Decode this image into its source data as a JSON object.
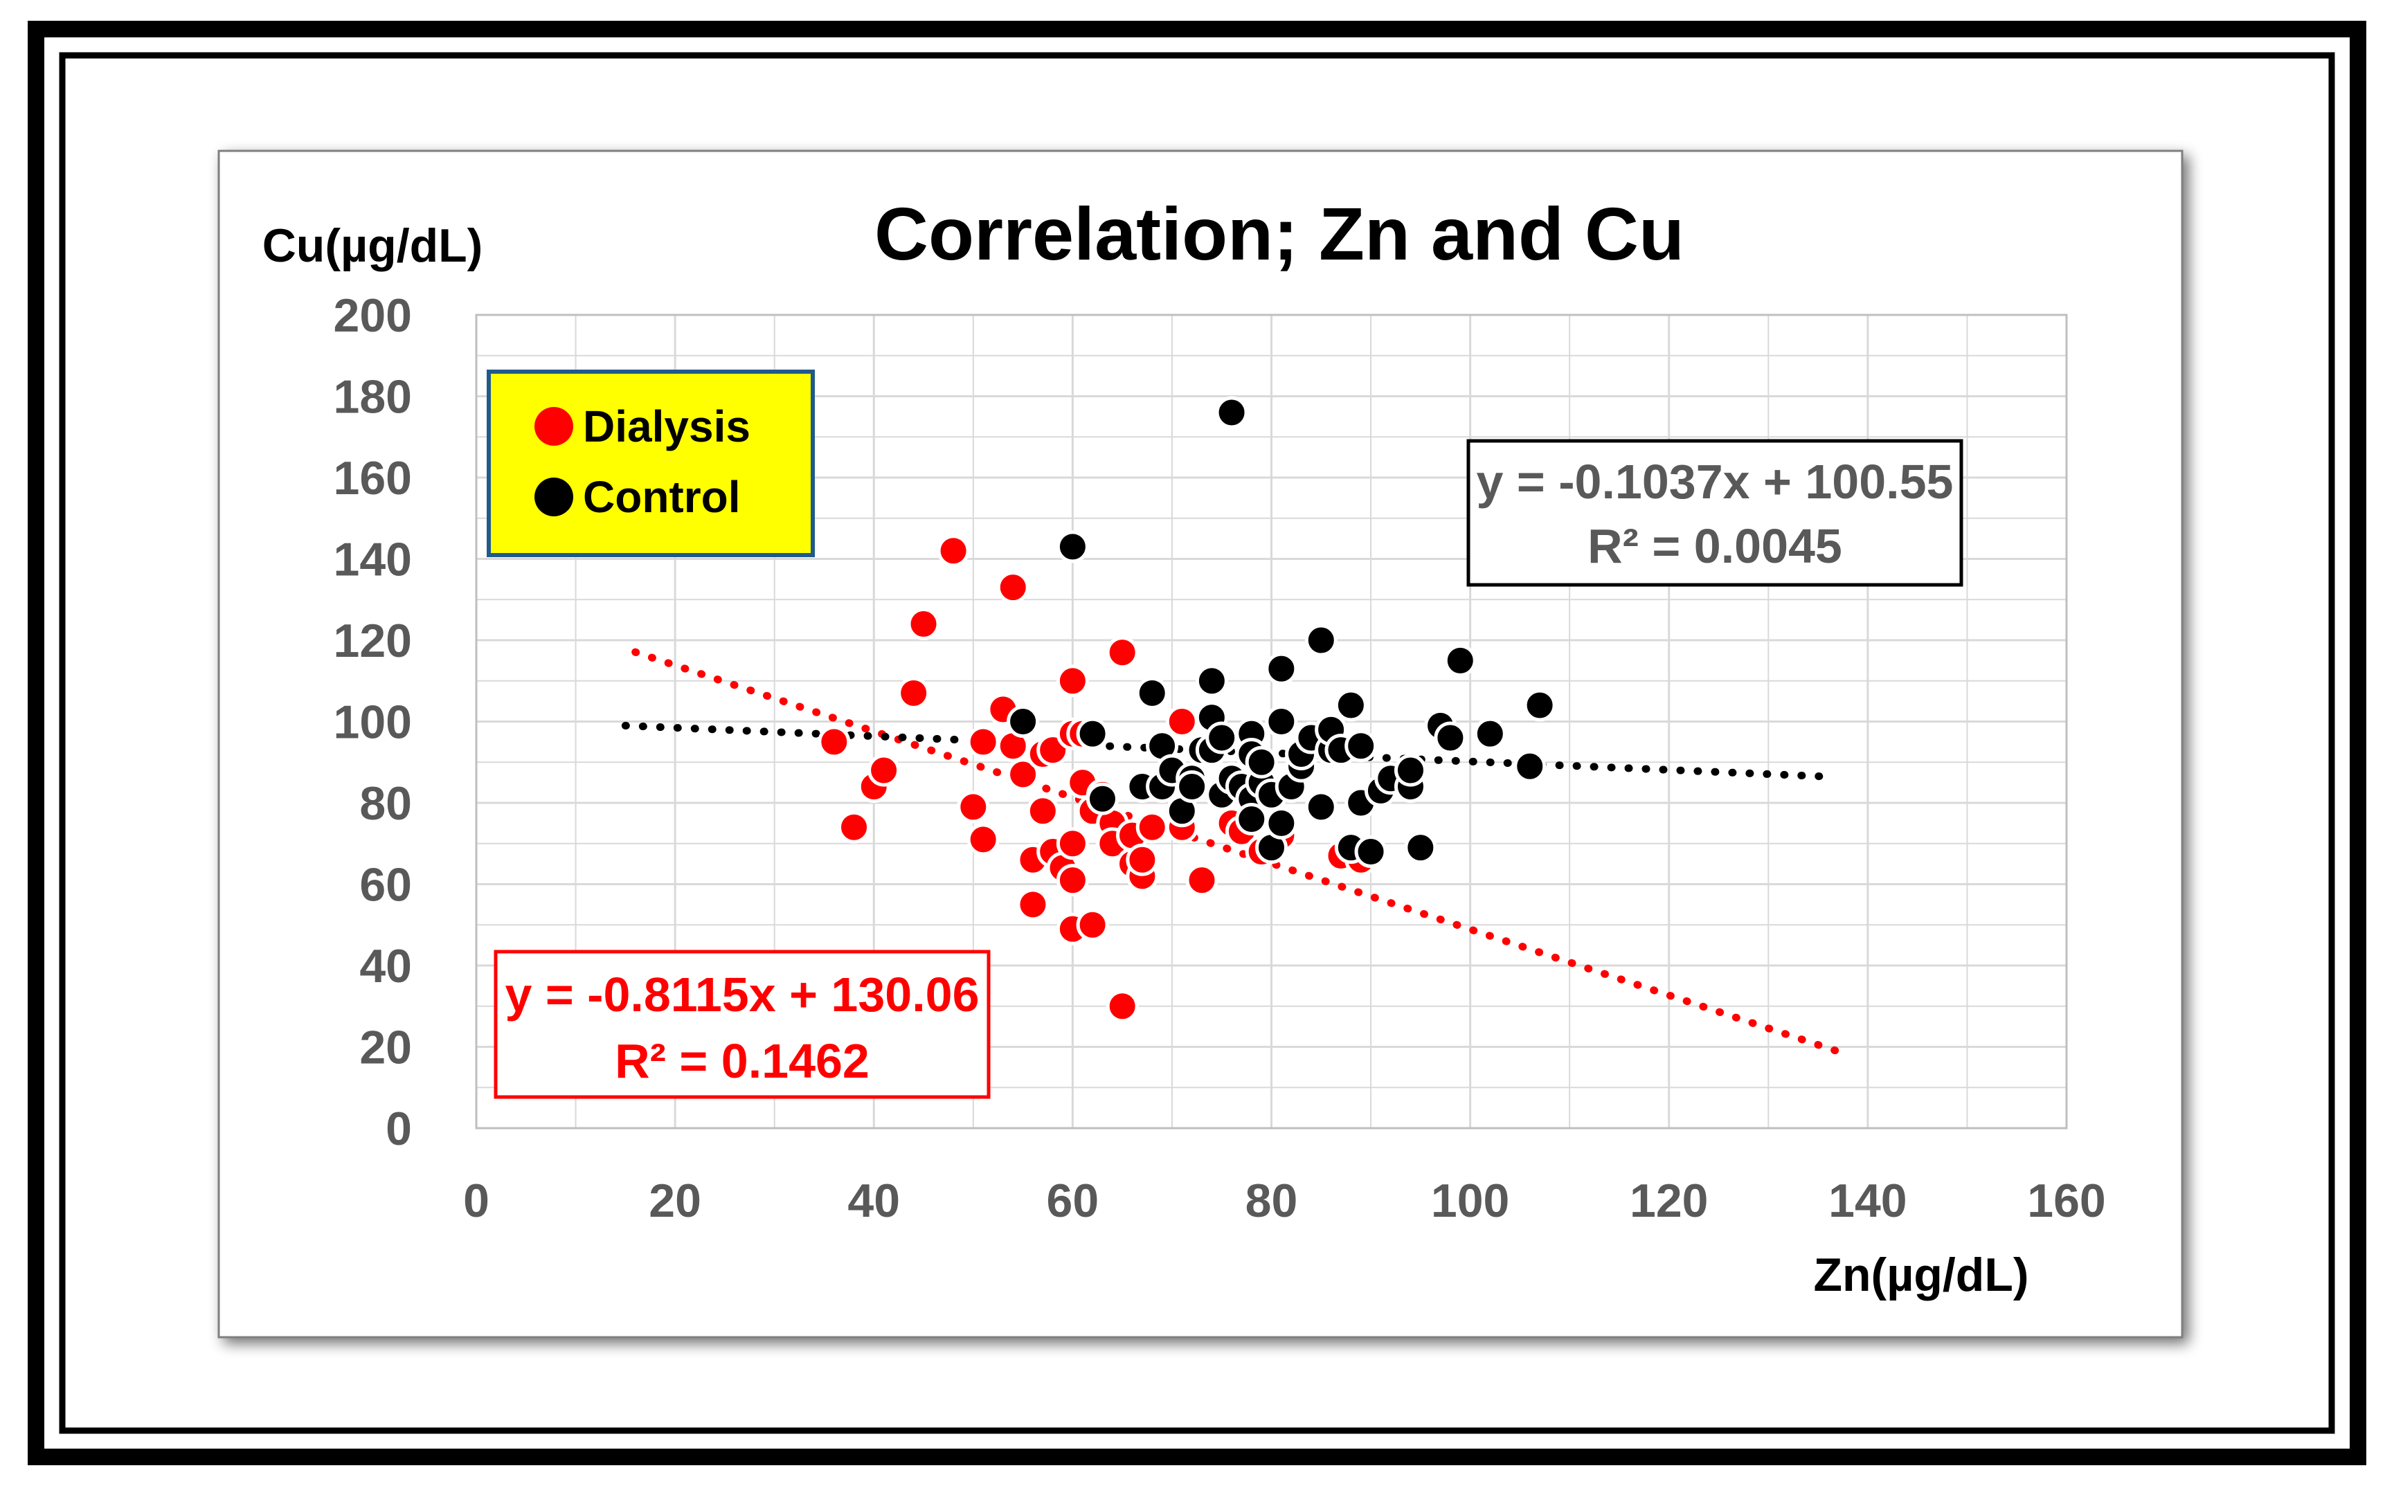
{
  "chart_data": {
    "type": "scatter",
    "title": "Correlation; Zn and Cu",
    "xlabel": "Zn(µg/dL)",
    "ylabel": "Cu(µg/dL)",
    "xlim": [
      0,
      160
    ],
    "ylim": [
      0,
      200
    ],
    "xticks": [
      0,
      20,
      40,
      60,
      80,
      100,
      120,
      140,
      160
    ],
    "yticks": [
      0,
      20,
      40,
      60,
      80,
      100,
      120,
      140,
      160,
      180,
      200
    ],
    "grid": true,
    "legend_position": "top-left",
    "legend": [
      {
        "name": "Dialysis",
        "color": "#ff0000"
      },
      {
        "name": "Control",
        "color": "#000000"
      }
    ],
    "series": [
      {
        "name": "Dialysis",
        "color": "#ff0000",
        "points": [
          [
            36,
            95
          ],
          [
            38,
            74
          ],
          [
            40,
            84
          ],
          [
            41,
            88
          ],
          [
            44,
            107
          ],
          [
            45,
            124
          ],
          [
            48,
            142
          ],
          [
            50,
            79
          ],
          [
            51,
            71
          ],
          [
            51,
            95
          ],
          [
            53,
            103
          ],
          [
            54,
            133
          ],
          [
            54,
            94
          ],
          [
            55,
            87
          ],
          [
            56,
            66
          ],
          [
            56,
            55
          ],
          [
            57,
            92
          ],
          [
            57,
            78
          ],
          [
            58,
            93
          ],
          [
            58,
            68
          ],
          [
            59,
            64
          ],
          [
            60,
            110
          ],
          [
            60,
            70
          ],
          [
            60,
            61
          ],
          [
            60,
            49
          ],
          [
            60,
            97
          ],
          [
            61,
            85
          ],
          [
            61,
            97
          ],
          [
            62,
            50
          ],
          [
            62,
            78
          ],
          [
            63,
            82
          ],
          [
            64,
            75
          ],
          [
            64,
            70
          ],
          [
            65,
            117
          ],
          [
            65,
            30
          ],
          [
            66,
            65
          ],
          [
            66,
            72
          ],
          [
            67,
            62
          ],
          [
            67,
            66
          ],
          [
            68,
            74
          ],
          [
            71,
            100
          ],
          [
            71,
            74
          ],
          [
            73,
            61
          ],
          [
            76,
            75
          ],
          [
            77,
            73
          ],
          [
            79,
            68
          ],
          [
            81,
            72
          ],
          [
            87,
            67
          ],
          [
            89,
            66
          ]
        ]
      },
      {
        "name": "Control",
        "color": "#000000",
        "points": [
          [
            55,
            100
          ],
          [
            60,
            143
          ],
          [
            62,
            97
          ],
          [
            63,
            81
          ],
          [
            67,
            84
          ],
          [
            68,
            107
          ],
          [
            69,
            94
          ],
          [
            69,
            84
          ],
          [
            70,
            88
          ],
          [
            71,
            78
          ],
          [
            72,
            86
          ],
          [
            72,
            84
          ],
          [
            73,
            93
          ],
          [
            74,
            110
          ],
          [
            74,
            101
          ],
          [
            74,
            93
          ],
          [
            75,
            82
          ],
          [
            75,
            96
          ],
          [
            76,
            176
          ],
          [
            76,
            86
          ],
          [
            77,
            84
          ],
          [
            78,
            97
          ],
          [
            78,
            92
          ],
          [
            78,
            81
          ],
          [
            78,
            76
          ],
          [
            79,
            85
          ],
          [
            79,
            90
          ],
          [
            80,
            69
          ],
          [
            80,
            82
          ],
          [
            81,
            113
          ],
          [
            81,
            100
          ],
          [
            81,
            75
          ],
          [
            82,
            84
          ],
          [
            83,
            89
          ],
          [
            83,
            92
          ],
          [
            84,
            96
          ],
          [
            85,
            120
          ],
          [
            85,
            79
          ],
          [
            86,
            93
          ],
          [
            86,
            98
          ],
          [
            87,
            93
          ],
          [
            88,
            104
          ],
          [
            88,
            69
          ],
          [
            89,
            94
          ],
          [
            89,
            80
          ],
          [
            90,
            68
          ],
          [
            91,
            83
          ],
          [
            92,
            86
          ],
          [
            94,
            84
          ],
          [
            94,
            88
          ],
          [
            95,
            69
          ],
          [
            97,
            99
          ],
          [
            98,
            96
          ],
          [
            99,
            115
          ],
          [
            102,
            97
          ],
          [
            106,
            89
          ],
          [
            107,
            104
          ]
        ]
      }
    ],
    "trendlines": [
      {
        "series": "Dialysis",
        "color": "#ff0000",
        "slope": -0.8115,
        "intercept": 130.06,
        "x_range": [
          16,
          138
        ],
        "equation": "y = -0.8115x + 130.06",
        "r2": "R² = 0.1462"
      },
      {
        "series": "Control",
        "color": "#000000",
        "slope": -0.1037,
        "intercept": 100.55,
        "x_range": [
          15,
          136
        ],
        "equation": "y = -0.1037x + 100.55",
        "r2": "R² = 0.0045"
      }
    ]
  },
  "colors": {
    "legend_background": "#ffff00",
    "legend_border": "#1f5a8c",
    "dialysis": "#ff0000",
    "control": "#000000",
    "grid": "#d9d9d9",
    "axis_text": "#595959"
  }
}
